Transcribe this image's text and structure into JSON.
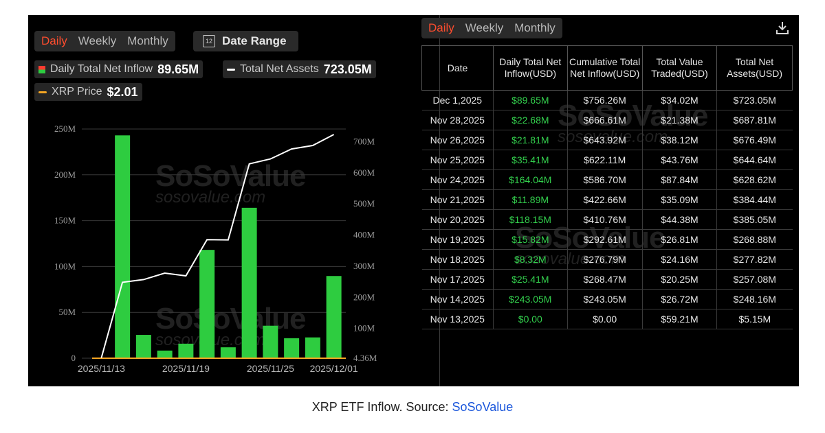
{
  "left": {
    "tabs": [
      "Daily",
      "Weekly",
      "Monthly"
    ],
    "active_tab": "Daily",
    "date_range_label": "Date Range",
    "calendar_glyph": "12"
  },
  "legend": {
    "inflow_name": "Daily Total Net Inflow",
    "inflow_value": "89.65M",
    "assets_name": "Total Net Assets",
    "assets_value": "723.05M",
    "price_name": "XRP Price",
    "price_value": "$2.01"
  },
  "watermark": {
    "brand": "SoSoValue",
    "domain": "sosovalue.com"
  },
  "colors": {
    "bar": "#2ecc40",
    "line": "#ffffff",
    "price": "#f5a623",
    "active_tab": "#ff4d2e",
    "inflow_text": "#33d04d"
  },
  "chart_data": {
    "type": "bar",
    "title": "",
    "x_ticks": [
      "2025/11/13",
      "2025/11/19",
      "2025/11/25",
      "2025/12/01"
    ],
    "y_left_ticks": [
      "0",
      "50M",
      "100M",
      "150M",
      "200M",
      "250M"
    ],
    "y_right_ticks": [
      "4.36M",
      "100M",
      "200M",
      "300M",
      "400M",
      "500M",
      "600M",
      "700M"
    ],
    "y_left_range": [
      0,
      250
    ],
    "y_right_range": [
      4.36,
      723.05
    ],
    "categories": [
      "2025/11/13",
      "2025/11/14",
      "2025/11/17",
      "2025/11/18",
      "2025/11/19",
      "2025/11/20",
      "2025/11/21",
      "2025/11/24",
      "2025/11/25",
      "2025/11/26",
      "2025/11/28",
      "2025/12/01"
    ],
    "series": [
      {
        "name": "Daily Total Net Inflow",
        "type": "bar",
        "axis": "left",
        "values": [
          0,
          243.05,
          25.41,
          8.32,
          15.82,
          118.15,
          11.89,
          164.04,
          35.41,
          21.81,
          22.68,
          89.65
        ]
      },
      {
        "name": "Total Net Assets",
        "type": "line",
        "axis": "right",
        "values": [
          5.15,
          248.16,
          257.08,
          277.82,
          268.88,
          385.05,
          384.44,
          628.62,
          644.64,
          676.49,
          687.81,
          723.05
        ]
      },
      {
        "name": "XRP Price",
        "type": "line",
        "axis": "price",
        "values": [
          2.01,
          2.01,
          2.01,
          2.01,
          2.01,
          2.01,
          2.01,
          2.01,
          2.01,
          2.01,
          2.01,
          2.01
        ]
      }
    ],
    "grid": true
  },
  "right": {
    "tabs": [
      "Daily",
      "Weekly",
      "Monthly"
    ],
    "active_tab": "Daily",
    "download_icon": "download-icon",
    "headers": [
      "Date",
      "Daily Total Net Inflow(USD)",
      "Cumulative Total Net Inflow(USD)",
      "Total Value Traded(USD)",
      "Total Net Assets(USD)"
    ],
    "rows": [
      [
        "Dec 1,2025",
        "$89.65M",
        "$756.26M",
        "$34.02M",
        "$723.05M"
      ],
      [
        "Nov 28,2025",
        "$22.68M",
        "$666.61M",
        "$21.38M",
        "$687.81M"
      ],
      [
        "Nov 26,2025",
        "$21.81M",
        "$643.92M",
        "$38.12M",
        "$676.49M"
      ],
      [
        "Nov 25,2025",
        "$35.41M",
        "$622.11M",
        "$43.76M",
        "$644.64M"
      ],
      [
        "Nov 24,2025",
        "$164.04M",
        "$586.70M",
        "$87.84M",
        "$628.62M"
      ],
      [
        "Nov 21,2025",
        "$11.89M",
        "$422.66M",
        "$35.09M",
        "$384.44M"
      ],
      [
        "Nov 20,2025",
        "$118.15M",
        "$410.76M",
        "$44.38M",
        "$385.05M"
      ],
      [
        "Nov 19,2025",
        "$15.82M",
        "$292.61M",
        "$26.81M",
        "$268.88M"
      ],
      [
        "Nov 18,2025",
        "$8.32M",
        "$276.79M",
        "$24.16M",
        "$277.82M"
      ],
      [
        "Nov 17,2025",
        "$25.41M",
        "$268.47M",
        "$20.25M",
        "$257.08M"
      ],
      [
        "Nov 14,2025",
        "$243.05M",
        "$243.05M",
        "$26.72M",
        "$248.16M"
      ],
      [
        "Nov 13,2025",
        "$0.00",
        "$0.00",
        "$59.21M",
        "$5.15M"
      ]
    ]
  },
  "caption": {
    "text": "XRP ETF Inflow. Source: ",
    "link": "SoSoValue"
  }
}
